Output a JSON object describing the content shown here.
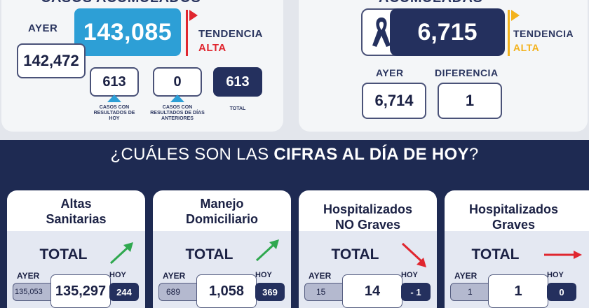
{
  "left": {
    "section_title": "CASOS ACUMULADOS",
    "total": "143,085",
    "ayer_label": "AYER",
    "ayer_value": "142,472",
    "tendencia_label": "TENDENCIA",
    "tendencia_value": "ALTA",
    "hoy_value": "613",
    "hoy_caption": "CASOS CON RESULTADOS DE HOY",
    "anteriores_value": "0",
    "anteriores_caption": "CASOS CON RESULTADOS DE DÍAS ANTERIORES",
    "total_value": "613",
    "total_caption": "TOTAL"
  },
  "right": {
    "section_title": "ACUMULADAS",
    "total": "6,715",
    "tendencia_label": "TENDENCIA",
    "tendencia_value": "ALTA",
    "ayer_label": "AYER",
    "ayer_value": "6,714",
    "diferencia_label": "DIFERENCIA",
    "diferencia_value": "1"
  },
  "banner": {
    "prefix": "¿CUÁLES SON LAS ",
    "bold": "CIFRAS AL DÍA DE HOY",
    "suffix": "?"
  },
  "cards": [
    {
      "title_line1": "Altas",
      "title_line2": "Sanitarias",
      "total_label": "TOTAL",
      "ayer_label": "AYER",
      "hoy_label": "HOY",
      "ayer": "135,053",
      "total": "135,297",
      "hoy": "244",
      "trend": "up"
    },
    {
      "title_line1": "Manejo",
      "title_line2": "Domiciliario",
      "total_label": "TOTAL",
      "ayer_label": "AYER",
      "hoy_label": "HOY",
      "ayer": "689",
      "total": "1,058",
      "hoy": "369",
      "trend": "up"
    },
    {
      "title_line1": "Hospitalizados",
      "title_line2": "NO Graves",
      "total_label": "TOTAL",
      "ayer_label": "AYER",
      "hoy_label": "HOY",
      "ayer": "15",
      "total": "14",
      "hoy": "- 1",
      "trend": "down"
    },
    {
      "title_line1": "Hospitalizados",
      "title_line2": "Graves",
      "total_label": "TOTAL",
      "ayer_label": "AYER",
      "hoy_label": "HOY",
      "ayer": "1",
      "total": "1",
      "hoy": "0",
      "trend": "flat"
    }
  ],
  "colors": {
    "blue": "#2d9fd6",
    "navy": "#24305e",
    "red": "#e0262f",
    "yellow": "#f3b21c",
    "green": "#2fa84f"
  }
}
